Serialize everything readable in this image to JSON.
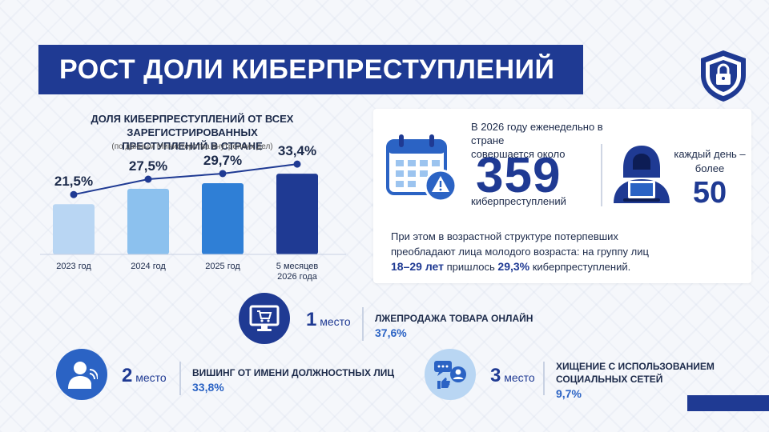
{
  "header": {
    "title": "РОСТ ДОЛИ КИБЕРПРЕСТУПЛЕНИЙ"
  },
  "chart": {
    "title_line1": "ДОЛЯ КИБЕРПРЕСТУПЛЕНИЙ ОТ ВСЕХ ЗАРЕГИСТРИРОВАННЫХ",
    "title_line2": "ПРЕСТУПЛЕНИЙ В СТРАНЕ",
    "source": "(по данным Министерства внутренних дел)"
  },
  "chart_data": {
    "type": "bar",
    "categories": [
      "2023 год",
      "2024 год",
      "2025 год",
      "5 месяцев 2026 года"
    ],
    "values": [
      21.5,
      27.5,
      29.7,
      33.4
    ],
    "value_labels": [
      "21,5%",
      "27,5%",
      "29,7%",
      "33,4%"
    ],
    "title": "ДОЛЯ КИБЕРПРЕСТУПЛЕНИЙ ОТ ВСЕХ ЗАРЕГИСТРИРОВАННЫХ ПРЕСТУПЛЕНИЙ В СТРАНЕ",
    "subtitle": "(по данным Министерства внутренних дел)",
    "ylim": [
      0,
      40
    ],
    "has_trend_line": true,
    "colors": [
      "#b9d6f3",
      "#8cc1ee",
      "#2f7fd6",
      "#1f3a93"
    ],
    "line_color": "#1f3a93"
  },
  "info": {
    "weekly_line1": "В 2026 году еженедельно в стране",
    "weekly_line2": "совершается около",
    "weekly_number": "359",
    "weekly_unit": "киберпреступлений",
    "daily_line1": "каждый день –",
    "daily_line2": "более",
    "daily_number": "50",
    "age_line1": "При этом в возрастной структуре потерпевших",
    "age_line2": "преобладают лица молодого возраста: на группу лиц",
    "age_range": "18–29 лет",
    "age_mid": " пришлось ",
    "age_pct": "29,3%",
    "age_end": " киберпреступлений."
  },
  "rankings": [
    {
      "num": "1",
      "word": "место",
      "label_line1": "ЛЖЕПРОДАЖА ТОВАРА ОНЛАЙН",
      "label_line2": "",
      "pct": "37,6%",
      "icon": "computer-cart-icon"
    },
    {
      "num": "2",
      "word": "место",
      "label_line1": "ВИШИНГ ОТ ИМЕНИ ДОЛЖНОСТНЫХ ЛИЦ",
      "label_line2": "",
      "pct": "33,8%",
      "icon": "phone-call-icon"
    },
    {
      "num": "3",
      "word": "место",
      "label_line1": "ХИЩЕНИЕ С ИСПОЛЬЗОВАНИЕМ",
      "label_line2": "СОЦИАЛЬНЫХ СЕТЕЙ",
      "pct": "9,7%",
      "icon": "social-network-icon"
    }
  ],
  "colors": {
    "primary": "#1f3a93",
    "accent": "#2b63c4",
    "light": "#b9d6f3"
  }
}
